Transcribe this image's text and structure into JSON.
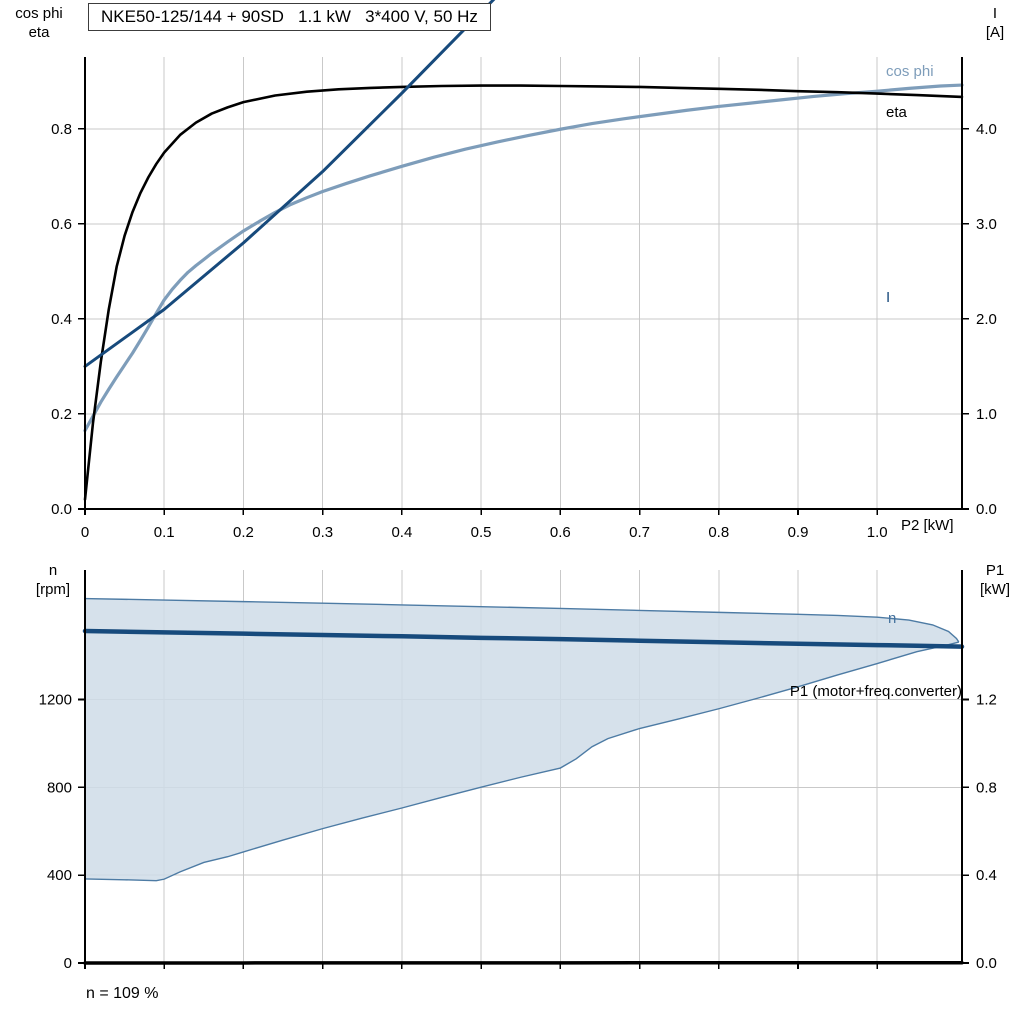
{
  "title": "NKE50-125/144 + 90SD   1.1 kW   3*400 V, 50 Hz",
  "caption": "n = 109 %",
  "axis_labels": {
    "top_left_line1": "cos phi",
    "top_left_line2": "eta",
    "top_right_line1": "I",
    "top_right_line2": "[A]",
    "bottom_left_line1": "n",
    "bottom_left_line2": "[rpm]",
    "bottom_right_line1": "P1",
    "bottom_right_line2": "[kW]",
    "x_axis": "P2 [kW]"
  },
  "curve_labels": {
    "cos_phi": "cos phi",
    "eta": "eta",
    "current": "I",
    "speed": "n",
    "p1": "P1 (motor+freq.converter)"
  },
  "colors": {
    "eta": "#000000",
    "cos_phi": "#7e9dba",
    "current": "#174a7c",
    "speed": "#174a7c",
    "p1": "#000000",
    "band_fill": "#cfdce8",
    "band_stroke": "#4d7ba4",
    "grid": "#c9c9c9",
    "axis": "#000000",
    "label_n": "#44729e",
    "text": "#000000"
  },
  "chart_data": [
    {
      "id": "top",
      "type": "line",
      "title": "NKE50-125/144 + 90SD 1.1 kW 3*400 V, 50 Hz",
      "x_axis_label": "P2 [kW]",
      "x_range": [
        0,
        1.107
      ],
      "y_range": [
        0,
        0.951
      ],
      "x_ticks": {
        "values": [
          0,
          0.1,
          0.2,
          0.3,
          0.4,
          0.5,
          0.6,
          0.7,
          0.8,
          0.9,
          1.0
        ],
        "labels": [
          "0",
          "0.1",
          "0.2",
          "0.3",
          "0.4",
          "0.5",
          "0.6",
          "0.7",
          "0.8",
          "0.9",
          "1.0"
        ]
      },
      "left_axis": {
        "title": "cos phi / eta",
        "tick_values": [
          0,
          0.2,
          0.4,
          0.6,
          0.8
        ],
        "tick_labels": [
          "0.0",
          "0.2",
          "0.4",
          "0.6",
          "0.8"
        ]
      },
      "right_axis": {
        "title": "I [A]",
        "tick_values": [
          0,
          1,
          2,
          3,
          4
        ],
        "tick_labels": [
          "0.0",
          "1.0",
          "2.0",
          "3.0",
          "4.0"
        ]
      },
      "series": [
        {
          "name": "cos-phi",
          "color": "cos_phi",
          "width": 3.2,
          "points": [
            [
              0,
              0.165
            ],
            [
              0.01,
              0.195
            ],
            [
              0.02,
              0.225
            ],
            [
              0.03,
              0.252
            ],
            [
              0.04,
              0.278
            ],
            [
              0.05,
              0.303
            ],
            [
              0.06,
              0.328
            ],
            [
              0.07,
              0.355
            ],
            [
              0.08,
              0.383
            ],
            [
              0.09,
              0.412
            ],
            [
              0.1,
              0.44
            ],
            [
              0.11,
              0.462
            ],
            [
              0.12,
              0.481
            ],
            [
              0.13,
              0.498
            ],
            [
              0.14,
              0.512
            ],
            [
              0.15,
              0.525
            ],
            [
              0.16,
              0.538
            ],
            [
              0.18,
              0.562
            ],
            [
              0.2,
              0.585
            ],
            [
              0.22,
              0.605
            ],
            [
              0.24,
              0.624
            ],
            [
              0.26,
              0.641
            ],
            [
              0.28,
              0.655
            ],
            [
              0.3,
              0.668
            ],
            [
              0.33,
              0.685
            ],
            [
              0.36,
              0.701
            ],
            [
              0.4,
              0.721
            ],
            [
              0.44,
              0.74
            ],
            [
              0.48,
              0.757
            ],
            [
              0.52,
              0.772
            ],
            [
              0.56,
              0.786
            ],
            [
              0.6,
              0.799
            ],
            [
              0.64,
              0.811
            ],
            [
              0.68,
              0.821
            ],
            [
              0.72,
              0.83
            ],
            [
              0.76,
              0.839
            ],
            [
              0.8,
              0.847
            ],
            [
              0.84,
              0.854
            ],
            [
              0.88,
              0.861
            ],
            [
              0.92,
              0.868
            ],
            [
              0.96,
              0.874
            ],
            [
              1,
              0.879
            ],
            [
              1.04,
              0.885
            ],
            [
              1.08,
              0.89
            ],
            [
              1.107,
              0.892
            ]
          ]
        },
        {
          "name": "eta",
          "color": "eta",
          "width": 2.6,
          "points": [
            [
              0,
              0.02
            ],
            [
              0.005,
              0.1
            ],
            [
              0.01,
              0.18
            ],
            [
              0.02,
              0.31
            ],
            [
              0.03,
              0.42
            ],
            [
              0.04,
              0.51
            ],
            [
              0.05,
              0.575
            ],
            [
              0.06,
              0.625
            ],
            [
              0.07,
              0.665
            ],
            [
              0.08,
              0.698
            ],
            [
              0.09,
              0.726
            ],
            [
              0.1,
              0.75
            ],
            [
              0.12,
              0.787
            ],
            [
              0.14,
              0.813
            ],
            [
              0.16,
              0.832
            ],
            [
              0.18,
              0.845
            ],
            [
              0.2,
              0.856
            ],
            [
              0.24,
              0.87
            ],
            [
              0.28,
              0.878
            ],
            [
              0.32,
              0.883
            ],
            [
              0.36,
              0.886
            ],
            [
              0.4,
              0.888
            ],
            [
              0.45,
              0.89
            ],
            [
              0.5,
              0.891
            ],
            [
              0.55,
              0.891
            ],
            [
              0.6,
              0.89
            ],
            [
              0.65,
              0.889
            ],
            [
              0.7,
              0.888
            ],
            [
              0.75,
              0.886
            ],
            [
              0.8,
              0.884
            ],
            [
              0.85,
              0.882
            ],
            [
              0.9,
              0.879
            ],
            [
              0.95,
              0.877
            ],
            [
              1,
              0.874
            ],
            [
              1.05,
              0.871
            ],
            [
              1.107,
              0.867
            ]
          ]
        },
        {
          "name": "current",
          "color": "current",
          "width": 3,
          "points": [
            [
              0,
              0.3
            ],
            [
              0.1,
              0.42
            ],
            [
              0.2,
              0.56
            ],
            [
              0.3,
              0.71
            ],
            [
              0.4,
              0.875
            ],
            [
              0.5,
              1.045
            ],
            [
              0.6,
              1.215
            ],
            [
              0.7,
              1.385
            ],
            [
              0.8,
              1.55
            ],
            [
              0.9,
              1.715
            ],
            [
              1,
              1.88
            ],
            [
              1.107,
              2.05
            ]
          ]
        }
      ]
    },
    {
      "id": "bottom",
      "type": "line",
      "title": "Speed and input power",
      "x_range": [
        0,
        1.107
      ],
      "y_range": [
        0,
        1790
      ],
      "x_ticks": {
        "values": [
          0,
          0.1,
          0.2,
          0.3,
          0.4,
          0.5,
          0.6,
          0.7,
          0.8,
          0.9,
          1.0
        ],
        "labels": []
      },
      "left_axis": {
        "title": "n [rpm]",
        "tick_values": [
          0,
          400,
          800,
          1200
        ],
        "tick_labels": [
          "0",
          "400",
          "800",
          "1200"
        ]
      },
      "right_axis": {
        "title": "P1 [kW]",
        "tick_values": [
          0,
          0.4,
          0.8,
          1.2
        ],
        "tick_labels": [
          "0.0",
          "0.4",
          "0.8",
          "1.2"
        ]
      },
      "band": {
        "name": "speed-control-range",
        "upper": [
          [
            0,
            1660
          ],
          [
            0.1,
            1653
          ],
          [
            0.2,
            1646
          ],
          [
            0.3,
            1639
          ],
          [
            0.4,
            1631
          ],
          [
            0.5,
            1623
          ],
          [
            0.6,
            1615
          ],
          [
            0.7,
            1606
          ],
          [
            0.8,
            1597
          ],
          [
            0.9,
            1588
          ],
          [
            0.95,
            1583
          ],
          [
            1,
            1575
          ],
          [
            1.04,
            1562
          ],
          [
            1.07,
            1540
          ],
          [
            1.09,
            1510
          ],
          [
            1.1,
            1478
          ],
          [
            1.103,
            1462
          ]
        ],
        "lower": [
          [
            0,
            383
          ],
          [
            0.05,
            379
          ],
          [
            0.09,
            375
          ],
          [
            0.1,
            382
          ],
          [
            0.12,
            415
          ],
          [
            0.15,
            458
          ],
          [
            0.18,
            484
          ],
          [
            0.2,
            506
          ],
          [
            0.25,
            560
          ],
          [
            0.3,
            612
          ],
          [
            0.35,
            660
          ],
          [
            0.4,
            706
          ],
          [
            0.45,
            754
          ],
          [
            0.5,
            801
          ],
          [
            0.55,
            846
          ],
          [
            0.6,
            888
          ],
          [
            0.62,
            930
          ],
          [
            0.64,
            985
          ],
          [
            0.66,
            1022
          ],
          [
            0.7,
            1068
          ],
          [
            0.75,
            1112
          ],
          [
            0.8,
            1158
          ],
          [
            0.85,
            1207
          ],
          [
            0.9,
            1258
          ],
          [
            0.95,
            1312
          ],
          [
            1,
            1364
          ],
          [
            1.05,
            1418
          ],
          [
            1.09,
            1450
          ],
          [
            1.103,
            1462
          ]
        ]
      },
      "series": [
        {
          "name": "speed",
          "color": "speed",
          "width": 4.5,
          "points": [
            [
              0,
              1512
            ],
            [
              0.1,
              1506
            ],
            [
              0.2,
              1500
            ],
            [
              0.3,
              1494
            ],
            [
              0.4,
              1488
            ],
            [
              0.5,
              1481
            ],
            [
              0.6,
              1475
            ],
            [
              0.7,
              1468
            ],
            [
              0.8,
              1461
            ],
            [
              0.9,
              1454
            ],
            [
              1,
              1448
            ],
            [
              1.05,
              1445
            ],
            [
              1.107,
              1441
            ]
          ]
        },
        {
          "name": "p1",
          "color": "p1",
          "width": 3.5,
          "points": [
            [
              0,
              0.05
            ],
            [
              0.1,
              0.165
            ],
            [
              0.2,
              0.283
            ],
            [
              0.3,
              0.4
            ],
            [
              0.4,
              0.518
            ],
            [
              0.5,
              0.635
            ],
            [
              0.6,
              0.752
            ],
            [
              0.7,
              0.868
            ],
            [
              0.8,
              0.985
            ],
            [
              0.9,
              1.1
            ],
            [
              1,
              1.215
            ],
            [
              1.05,
              1.272
            ],
            [
              1.107,
              1.335
            ]
          ]
        }
      ]
    }
  ]
}
